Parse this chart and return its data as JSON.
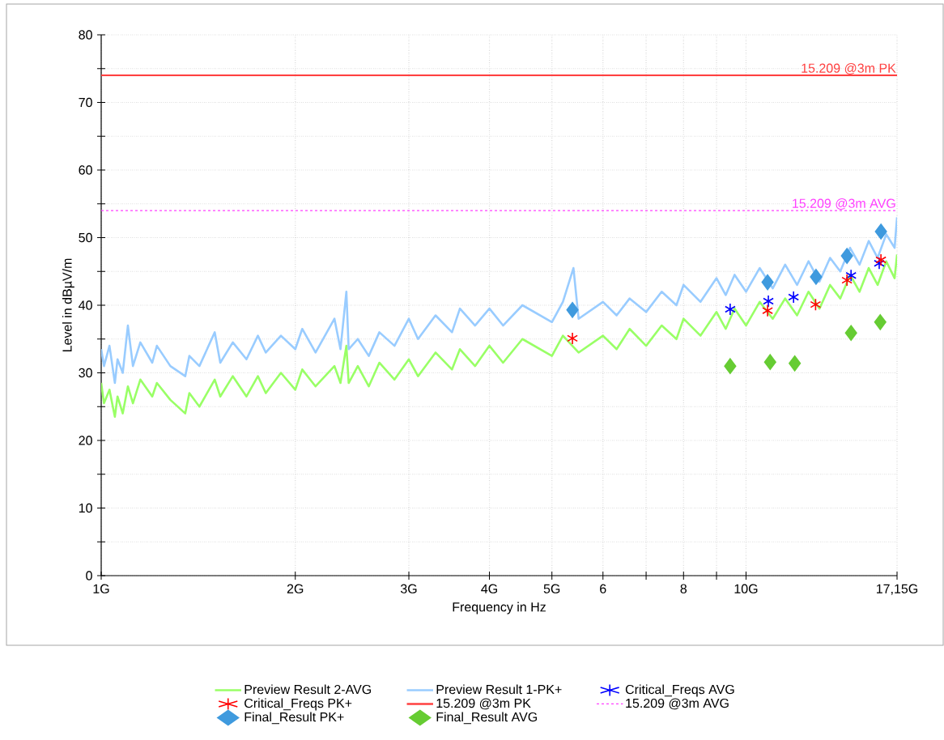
{
  "chart_data": {
    "type": "line",
    "xlabel": "Frequency in Hz",
    "ylabel": "Level in dBµV/m",
    "log": "x",
    "grid": true,
    "legend": "bottom",
    "xlim": [
      1,
      17.15
    ],
    "ylim": [
      0,
      80
    ],
    "xticks": [
      {
        "value": 1,
        "label": "1G"
      },
      {
        "value": 2,
        "label": "2G"
      },
      {
        "value": 3,
        "label": "3G"
      },
      {
        "value": 4,
        "label": "4G"
      },
      {
        "value": 5,
        "label": "5G"
      },
      6,
      {
        "value": 7,
        "label": null
      },
      8,
      {
        "value": 9,
        "label": null
      },
      {
        "value": 10,
        "label": "10G"
      },
      {
        "value": 17.15,
        "label": "17,15G"
      }
    ],
    "yticks": [
      0,
      {
        "value": 5,
        "label": null
      },
      10,
      {
        "value": 15,
        "label": null
      },
      20,
      {
        "value": 25,
        "label": null
      },
      30,
      {
        "value": 35,
        "label": null
      },
      40,
      {
        "value": 45,
        "label": null
      },
      50,
      {
        "value": 55,
        "label": null
      },
      60,
      {
        "value": 65,
        "label": null
      },
      70,
      {
        "value": 75,
        "label": null
      },
      80
    ],
    "series": [
      {
        "name": "Preview Result 2-AVG",
        "color": "#99ff66",
        "marker": "none",
        "x": [
          1.0,
          1.01,
          1.03,
          1.05,
          1.06,
          1.08,
          1.1,
          1.12,
          1.15,
          1.2,
          1.22,
          1.28,
          1.35,
          1.37,
          1.42,
          1.5,
          1.53,
          1.6,
          1.68,
          1.75,
          1.8,
          1.9,
          2.0,
          2.05,
          2.15,
          2.3,
          2.35,
          2.4,
          2.42,
          2.5,
          2.6,
          2.7,
          2.85,
          3.0,
          3.1,
          3.3,
          3.5,
          3.6,
          3.8,
          4.0,
          4.2,
          4.5,
          5.0,
          5.2,
          5.5,
          6.0,
          6.3,
          6.6,
          7.0,
          7.4,
          7.8,
          8.0,
          8.5,
          9.0,
          9.3,
          9.6,
          10.0,
          10.5,
          11.0,
          11.5,
          12.0,
          12.5,
          13.0,
          13.5,
          14.0,
          14.5,
          15.0,
          15.5,
          16.0,
          16.5,
          17.0,
          17.15
        ],
        "values": [
          28.5,
          25.5,
          27.5,
          23.5,
          26.5,
          24,
          28,
          25.5,
          29,
          26.5,
          28.5,
          26,
          24,
          27,
          25,
          29,
          26.5,
          29.5,
          26.5,
          29.5,
          27,
          30,
          27.5,
          30.5,
          28,
          31,
          28.5,
          34,
          28.5,
          31,
          28,
          31.5,
          29,
          32,
          29.5,
          33,
          30.5,
          33.5,
          31,
          34,
          31.5,
          35,
          32.5,
          35.5,
          33,
          35.5,
          33.5,
          36.5,
          34,
          37,
          35,
          38,
          35.5,
          39,
          36.5,
          39.5,
          37,
          40.5,
          38,
          41,
          38.5,
          42,
          39.5,
          43,
          41,
          44.5,
          42,
          45.5,
          43,
          46.5,
          44,
          47.5
        ]
      },
      {
        "name": "Preview Result 1-PK+",
        "color": "#99ccff",
        "marker": "none",
        "x": [
          1.0,
          1.01,
          1.03,
          1.05,
          1.06,
          1.08,
          1.1,
          1.12,
          1.15,
          1.2,
          1.22,
          1.28,
          1.35,
          1.37,
          1.42,
          1.5,
          1.53,
          1.6,
          1.68,
          1.75,
          1.8,
          1.9,
          2.0,
          2.05,
          2.15,
          2.3,
          2.35,
          2.4,
          2.42,
          2.5,
          2.6,
          2.7,
          2.85,
          3.0,
          3.1,
          3.3,
          3.5,
          3.6,
          3.8,
          4.0,
          4.2,
          4.5,
          5.0,
          5.2,
          5.4,
          5.5,
          6.0,
          6.3,
          6.6,
          7.0,
          7.4,
          7.8,
          8.0,
          8.5,
          9.0,
          9.3,
          9.6,
          10.0,
          10.5,
          11.0,
          11.5,
          12.0,
          12.5,
          13.0,
          13.5,
          14.0,
          14.5,
          15.0,
          15.5,
          16.0,
          16.5,
          17.0,
          17.15
        ],
        "values": [
          33.5,
          31,
          34,
          28.5,
          32,
          30,
          37,
          31,
          34.5,
          31.5,
          34,
          31,
          29.5,
          32.5,
          31,
          36,
          31.5,
          34.5,
          32,
          35.5,
          33,
          35.5,
          33.5,
          36.5,
          33,
          38,
          33.5,
          42,
          33.5,
          35,
          32.5,
          36,
          34,
          38,
          35,
          38.5,
          36,
          39.5,
          37,
          39.5,
          37,
          40,
          37.5,
          40.5,
          45.5,
          38,
          40.5,
          38.5,
          41,
          39,
          42,
          40,
          43,
          40.5,
          44,
          41.5,
          44.5,
          42,
          45.5,
          42.5,
          46,
          43,
          46.5,
          43.5,
          47,
          45,
          48.5,
          46,
          49.5,
          47,
          50.5,
          48.5,
          53
        ]
      },
      {
        "name": "Critical_Freqs AVG",
        "type": "scatter",
        "color": "#0000ff",
        "marker": "cross",
        "x": [
          9.45,
          10.83,
          11.85,
          14.55,
          16.09
        ],
        "values": [
          39.4,
          40.6,
          41.2,
          44.4,
          46.2
        ]
      },
      {
        "name": "Critical_Freqs PK+",
        "type": "scatter",
        "color": "#ff0000",
        "marker": "cross",
        "x": [
          5.38,
          10.8,
          12.82,
          14.34,
          16.19
        ],
        "values": [
          35.1,
          39.2,
          40.1,
          43.7,
          46.7
        ]
      },
      {
        "name": "15.209 @3m PK",
        "color": "#ff4040",
        "marker": "none",
        "line_style": "solid",
        "x": [
          1,
          17.15
        ],
        "values": [
          74,
          74
        ]
      },
      {
        "name": "15.209 @3m AVG",
        "color": "#ff40ff",
        "marker": "none",
        "line_style": "dashed",
        "x": [
          1,
          17.15
        ],
        "values": [
          54,
          54
        ]
      },
      {
        "name": "Final_Result PK+",
        "type": "scatter",
        "color": "#3f9ade",
        "marker": "diamond",
        "x": [
          5.38,
          10.8,
          12.84,
          14.34,
          16.19
        ],
        "values": [
          39.3,
          43.4,
          44.2,
          47.3,
          50.9
        ]
      },
      {
        "name": "Final_Result AVG",
        "type": "scatter",
        "color": "#66cc33",
        "marker": "diamond",
        "x": [
          9.45,
          10.9,
          11.9,
          14.55,
          16.15
        ],
        "values": [
          31.0,
          31.6,
          31.4,
          35.9,
          37.5
        ]
      }
    ],
    "annotations": [
      {
        "text": "15.209 @3m PK",
        "x": 17.15,
        "y": 74
      },
      {
        "text": "15.209 @3m AVG",
        "x": 17.15,
        "y": 54
      }
    ]
  }
}
